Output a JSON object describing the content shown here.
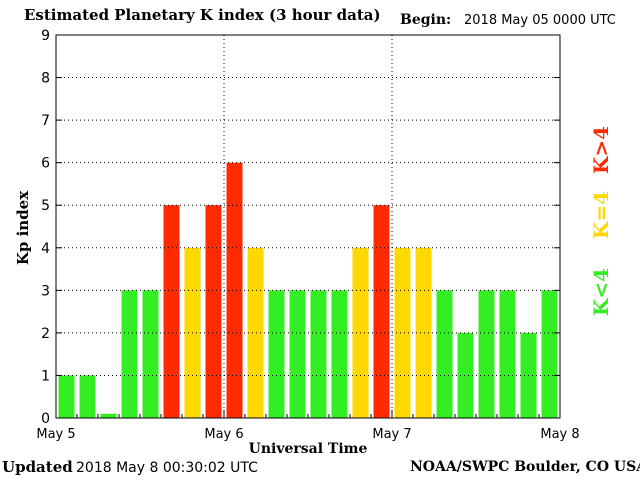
{
  "header": {
    "title": "Estimated Planetary K index (3 hour data)",
    "begin_label": "Begin:",
    "begin_value": "2018 May 05 0000 UTC"
  },
  "footer": {
    "updated_label": "Updated",
    "updated_value": "2018 May  8 00:30:02 UTC",
    "credit": "NOAA/SWPC Boulder, CO USA"
  },
  "legend": [
    {
      "label": "K>4",
      "color": "#ff2a00"
    },
    {
      "label": "K=4",
      "color": "#ffd800"
    },
    {
      "label": "K<4",
      "color": "#33ee22"
    }
  ],
  "colors": {
    "red": "#ff2a00",
    "yellow": "#ffd800",
    "green": "#33ee22",
    "grid": "#000000"
  },
  "chart_data": {
    "type": "bar",
    "xlabel": "Universal Time",
    "ylabel": "Kp index",
    "ylim": [
      0,
      9
    ],
    "yticks": [
      "0",
      "1",
      "2",
      "3",
      "4",
      "5",
      "6",
      "7",
      "8",
      "9"
    ],
    "xticks": [
      "May 5",
      "May 6",
      "May 7",
      "May 8"
    ],
    "bars_per_day": 8,
    "grid": true,
    "values": [
      1,
      1,
      0.1,
      3,
      3,
      5,
      4,
      5,
      6,
      4,
      3,
      3,
      3,
      3,
      4,
      5,
      4,
      4,
      3,
      2,
      3,
      3,
      2,
      3
    ]
  }
}
